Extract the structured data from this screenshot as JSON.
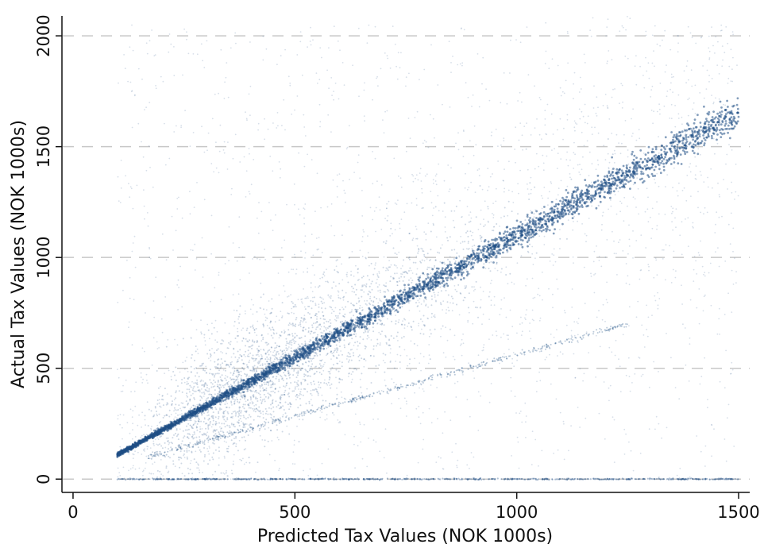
{
  "chart_data": {
    "type": "scatter",
    "xlabel": "Predicted Tax Values (NOK 1000s)",
    "ylabel": "Actual Tax Values (NOK 1000s)",
    "xlim": [
      -25,
      1525
    ],
    "ylim": [
      -60,
      2090
    ],
    "x_ticks": [
      0,
      500,
      1000,
      1500
    ],
    "y_ticks": [
      0,
      500,
      1000,
      1500,
      2000
    ],
    "grid": "horizontal dashed",
    "point_color": "#1f4e85",
    "series": [
      {
        "x": [
          100,
          1500
        ],
        "y": [
          110,
          1650
        ],
        "spread": [
          0,
          55
        ]
      },
      {
        "x": [
          150,
          1250
        ],
        "y": [
          90,
          700
        ]
      },
      {
        "x": [
          100,
          1500
        ],
        "y": [
          0,
          0
        ]
      }
    ]
  }
}
